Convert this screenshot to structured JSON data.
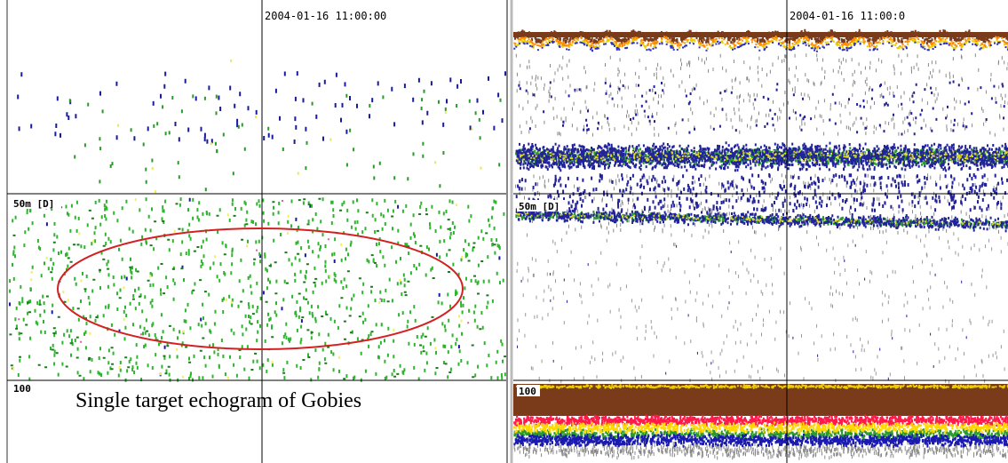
{
  "left_panel": {
    "timestamp": "2004-01-16 11:00:00",
    "depth_50": "50m [D]",
    "depth_100": "100",
    "caption": "Single target echogram of Gobies"
  },
  "right_panel": {
    "timestamp": "2004-01-16 11:00:0",
    "depth_50": "50m [D]",
    "depth_100": "100"
  }
}
